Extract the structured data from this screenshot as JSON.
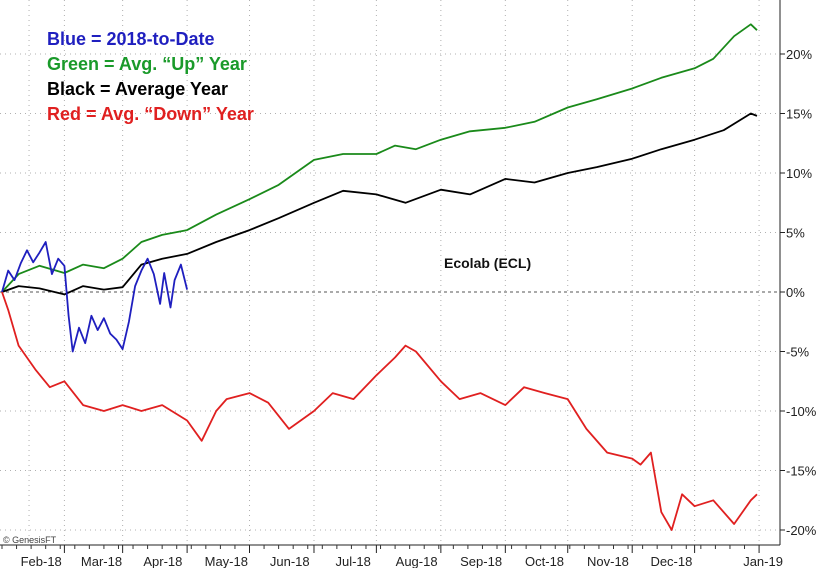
{
  "chart_data": {
    "type": "line",
    "title": "",
    "xlabel": "",
    "ylabel": "",
    "annotation": "Ecolab (ECL)",
    "credit": "© GenesisFT",
    "x_ticks": [
      "Feb-18",
      "Mar-18",
      "Apr-18",
      "May-18",
      "Jun-18",
      "Jul-18",
      "Aug-18",
      "Sep-18",
      "Oct-18",
      "Nov-18",
      "Dec-18",
      "Jan-19"
    ],
    "y_ticks": [
      "-20%",
      "-15%",
      "-10%",
      "-5%",
      "0%",
      "5%",
      "10%",
      "15%",
      "20%"
    ],
    "ylim": [
      -21,
      24
    ],
    "legend": [
      {
        "text": "Blue = 2018-to-Date",
        "color": "#1f1fbf"
      },
      {
        "text": "Green = Avg. “Up” Year",
        "color": "#1a9a2a"
      },
      {
        "text": "Black = Average Year",
        "color": "#000000"
      },
      {
        "text": "Red = Avg. “Down” Year",
        "color": "#e02020"
      }
    ],
    "series": [
      {
        "key": "green",
        "color": "#1a8a1a",
        "points": [
          [
            "2018-01-02",
            0
          ],
          [
            "2018-01-10",
            1.5
          ],
          [
            "2018-01-20",
            2.2
          ],
          [
            "2018-02-01",
            1.6
          ],
          [
            "2018-02-10",
            2.3
          ],
          [
            "2018-02-20",
            2.0
          ],
          [
            "2018-03-01",
            2.8
          ],
          [
            "2018-03-10",
            4.2
          ],
          [
            "2018-03-20",
            4.8
          ],
          [
            "2018-04-01",
            5.2
          ],
          [
            "2018-04-15",
            6.5
          ],
          [
            "2018-05-01",
            7.8
          ],
          [
            "2018-05-15",
            9.0
          ],
          [
            "2018-06-01",
            11.1
          ],
          [
            "2018-06-15",
            11.6
          ],
          [
            "2018-07-01",
            11.6
          ],
          [
            "2018-07-10",
            12.3
          ],
          [
            "2018-07-20",
            12.0
          ],
          [
            "2018-08-01",
            12.8
          ],
          [
            "2018-08-15",
            13.5
          ],
          [
            "2018-09-01",
            13.8
          ],
          [
            "2018-09-15",
            14.3
          ],
          [
            "2018-10-01",
            15.5
          ],
          [
            "2018-10-15",
            16.2
          ],
          [
            "2018-11-01",
            17.1
          ],
          [
            "2018-11-15",
            18.0
          ],
          [
            "2018-12-01",
            18.8
          ],
          [
            "2018-12-10",
            19.6
          ],
          [
            "2018-12-20",
            21.5
          ],
          [
            "2018-12-28",
            22.5
          ],
          [
            "2018-12-31",
            22.0
          ]
        ]
      },
      {
        "key": "black",
        "color": "#000000",
        "points": [
          [
            "2018-01-02",
            0
          ],
          [
            "2018-01-10",
            0.5
          ],
          [
            "2018-01-20",
            0.3
          ],
          [
            "2018-02-01",
            -0.2
          ],
          [
            "2018-02-10",
            0.5
          ],
          [
            "2018-02-20",
            0.2
          ],
          [
            "2018-03-01",
            0.4
          ],
          [
            "2018-03-10",
            2.3
          ],
          [
            "2018-03-20",
            2.8
          ],
          [
            "2018-04-01",
            3.2
          ],
          [
            "2018-04-15",
            4.2
          ],
          [
            "2018-05-01",
            5.2
          ],
          [
            "2018-05-15",
            6.2
          ],
          [
            "2018-06-01",
            7.5
          ],
          [
            "2018-06-15",
            8.5
          ],
          [
            "2018-07-01",
            8.2
          ],
          [
            "2018-07-15",
            7.5
          ],
          [
            "2018-08-01",
            8.6
          ],
          [
            "2018-08-15",
            8.2
          ],
          [
            "2018-09-01",
            9.5
          ],
          [
            "2018-09-15",
            9.2
          ],
          [
            "2018-10-01",
            10.0
          ],
          [
            "2018-10-15",
            10.5
          ],
          [
            "2018-11-01",
            11.2
          ],
          [
            "2018-11-15",
            12.0
          ],
          [
            "2018-12-01",
            12.8
          ],
          [
            "2018-12-15",
            13.6
          ],
          [
            "2018-12-28",
            15.0
          ],
          [
            "2018-12-31",
            14.8
          ]
        ]
      },
      {
        "key": "blue",
        "color": "#1f1fbf",
        "points": [
          [
            "2018-01-02",
            0
          ],
          [
            "2018-01-05",
            1.8
          ],
          [
            "2018-01-08",
            1.0
          ],
          [
            "2018-01-11",
            2.4
          ],
          [
            "2018-01-14",
            3.5
          ],
          [
            "2018-01-17",
            2.5
          ],
          [
            "2018-01-20",
            3.3
          ],
          [
            "2018-01-23",
            4.2
          ],
          [
            "2018-01-26",
            1.5
          ],
          [
            "2018-01-29",
            2.8
          ],
          [
            "2018-02-01",
            2.2
          ],
          [
            "2018-02-03",
            -2.0
          ],
          [
            "2018-02-05",
            -5.0
          ],
          [
            "2018-02-08",
            -3.0
          ],
          [
            "2018-02-11",
            -4.3
          ],
          [
            "2018-02-14",
            -2.0
          ],
          [
            "2018-02-17",
            -3.2
          ],
          [
            "2018-02-20",
            -2.2
          ],
          [
            "2018-02-23",
            -3.5
          ],
          [
            "2018-02-26",
            -4.0
          ],
          [
            "2018-03-01",
            -4.8
          ],
          [
            "2018-03-04",
            -2.5
          ],
          [
            "2018-03-07",
            0.5
          ],
          [
            "2018-03-10",
            1.8
          ],
          [
            "2018-03-13",
            2.8
          ],
          [
            "2018-03-16",
            1.5
          ],
          [
            "2018-03-19",
            -1.0
          ],
          [
            "2018-03-21",
            1.6
          ],
          [
            "2018-03-24",
            -1.3
          ],
          [
            "2018-03-26",
            1.0
          ],
          [
            "2018-03-29",
            2.3
          ],
          [
            "2018-04-01",
            0.2
          ]
        ]
      },
      {
        "key": "red",
        "color": "#e02020",
        "points": [
          [
            "2018-01-02",
            0
          ],
          [
            "2018-01-05",
            -1.5
          ],
          [
            "2018-01-10",
            -4.5
          ],
          [
            "2018-01-18",
            -6.5
          ],
          [
            "2018-01-25",
            -8.0
          ],
          [
            "2018-02-01",
            -7.5
          ],
          [
            "2018-02-10",
            -9.5
          ],
          [
            "2018-02-20",
            -10.0
          ],
          [
            "2018-03-01",
            -9.5
          ],
          [
            "2018-03-10",
            -10.0
          ],
          [
            "2018-03-20",
            -9.5
          ],
          [
            "2018-04-01",
            -10.8
          ],
          [
            "2018-04-08",
            -12.5
          ],
          [
            "2018-04-15",
            -10.0
          ],
          [
            "2018-04-20",
            -9.0
          ],
          [
            "2018-05-01",
            -8.5
          ],
          [
            "2018-05-10",
            -9.3
          ],
          [
            "2018-05-20",
            -11.5
          ],
          [
            "2018-06-01",
            -10.0
          ],
          [
            "2018-06-10",
            -8.5
          ],
          [
            "2018-06-20",
            -9.0
          ],
          [
            "2018-07-01",
            -7.0
          ],
          [
            "2018-07-10",
            -5.5
          ],
          [
            "2018-07-15",
            -4.5
          ],
          [
            "2018-07-20",
            -5.0
          ],
          [
            "2018-08-01",
            -7.5
          ],
          [
            "2018-08-10",
            -9.0
          ],
          [
            "2018-08-20",
            -8.5
          ],
          [
            "2018-09-01",
            -9.5
          ],
          [
            "2018-09-10",
            -8.0
          ],
          [
            "2018-09-20",
            -8.5
          ],
          [
            "2018-10-01",
            -9.0
          ],
          [
            "2018-10-10",
            -11.5
          ],
          [
            "2018-10-20",
            -13.5
          ],
          [
            "2018-11-01",
            -14.0
          ],
          [
            "2018-11-05",
            -14.5
          ],
          [
            "2018-11-10",
            -13.5
          ],
          [
            "2018-11-15",
            -18.5
          ],
          [
            "2018-11-20",
            -20.0
          ],
          [
            "2018-11-25",
            -17.0
          ],
          [
            "2018-12-01",
            -18.0
          ],
          [
            "2018-12-10",
            -17.5
          ],
          [
            "2018-12-20",
            -19.5
          ],
          [
            "2018-12-28",
            -17.5
          ],
          [
            "2018-12-31",
            -17.0
          ]
        ]
      }
    ]
  }
}
